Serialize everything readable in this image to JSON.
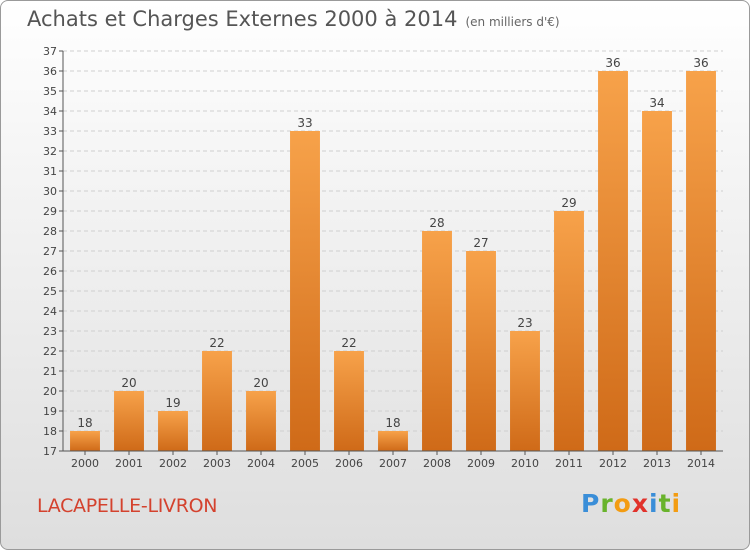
{
  "title": "Achats et Charges Externes 2000 à 2014",
  "subtitle": "(en milliers d'€)",
  "place": "LACAPELLE-LIVRON",
  "logo": "Proxiti",
  "colors": {
    "bar_top": "#f7a24a",
    "bar_bottom": "#cf6a18",
    "grid": "#cfcfcf",
    "axis": "#555555"
  },
  "chart_data": {
    "type": "bar",
    "title": "Achats et Charges Externes 2000 à 2014",
    "subtitle": "(en milliers d'€)",
    "xlabel": "",
    "ylabel": "",
    "ylim": [
      17,
      37
    ],
    "grid": true,
    "categories": [
      "2000",
      "2001",
      "2002",
      "2003",
      "2004",
      "2005",
      "2006",
      "2007",
      "2008",
      "2009",
      "2010",
      "2011",
      "2012",
      "2013",
      "2014"
    ],
    "values": [
      18,
      20,
      19,
      22,
      20,
      33,
      22,
      18,
      28,
      27,
      23,
      29,
      36,
      34,
      36
    ]
  }
}
